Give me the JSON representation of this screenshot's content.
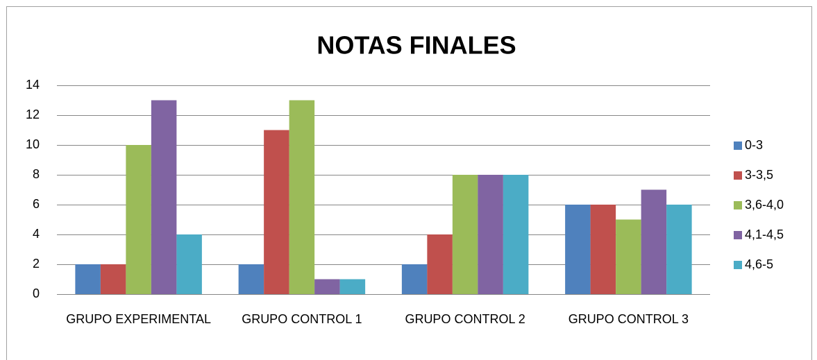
{
  "chart_data": {
    "type": "bar",
    "title": "NOTAS FINALES",
    "categories": [
      "GRUPO EXPERIMENTAL",
      "GRUPO CONTROL 1",
      "GRUPO CONTROL 2",
      "GRUPO CONTROL 3"
    ],
    "series": [
      {
        "name": "0-3",
        "color": "#4f81bd",
        "values": [
          2,
          2,
          2,
          6
        ]
      },
      {
        "name": "3-3,5",
        "color": "#c0504d",
        "values": [
          2,
          11,
          4,
          6
        ]
      },
      {
        "name": "3,6-4,0",
        "color": "#9bbb59",
        "values": [
          10,
          13,
          8,
          5
        ]
      },
      {
        "name": "4,1-4,5",
        "color": "#8064a2",
        "values": [
          13,
          1,
          8,
          7
        ]
      },
      {
        "name": "4,6-5",
        "color": "#4bacc6",
        "values": [
          4,
          1,
          8,
          6
        ]
      }
    ],
    "ylim": [
      0,
      14
    ],
    "yticks": [
      0,
      2,
      4,
      6,
      8,
      10,
      12,
      14
    ],
    "grid": true,
    "legend": "right"
  }
}
